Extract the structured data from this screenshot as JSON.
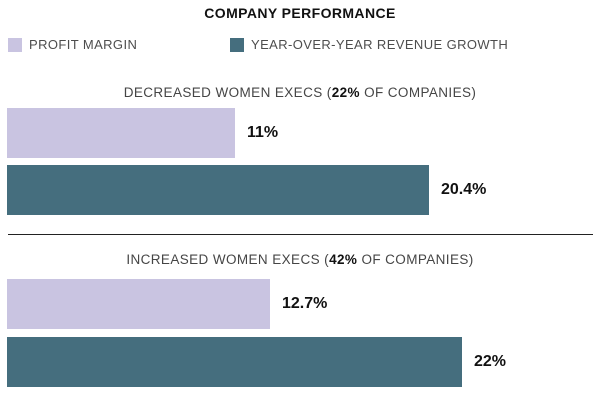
{
  "title": "COMPANY PERFORMANCE",
  "colors": {
    "profit_margin": "#c9c4e1",
    "revenue_growth": "#456e7e",
    "header_text": "#454545",
    "value_text": "#111111",
    "divider": "#222222"
  },
  "legend": [
    {
      "label": "PROFIT MARGIN",
      "series": "profit_margin",
      "color": "#c9c4e1"
    },
    {
      "label": "YEAR-OVER-YEAR REVENUE GROWTH",
      "series": "revenue_growth",
      "color": "#456e7e"
    }
  ],
  "chart_data": {
    "type": "bar",
    "orientation": "horizontal",
    "title": "COMPANY PERFORMANCE",
    "xlim": [
      0,
      29
    ],
    "grid": false,
    "axis_visible": false,
    "legend_position": "top-left",
    "series_names": [
      "PROFIT MARGIN",
      "YEAR-OVER-YEAR REVENUE GROWTH"
    ],
    "groups": [
      {
        "header_prefix": "DECREASED WOMEN EXECS (",
        "header_bold": "22%",
        "header_suffix": " OF COMPANIES)",
        "bars": [
          {
            "series": "profit_margin",
            "value": 11,
            "label": "11%"
          },
          {
            "series": "revenue_growth",
            "value": 20.4,
            "label": "20.4%"
          }
        ]
      },
      {
        "header_prefix": "INCREASED WOMEN EXECS (",
        "header_bold": "42%",
        "header_suffix": " OF COMPANIES)",
        "bars": [
          {
            "series": "profit_margin",
            "value": 12.7,
            "label": "12.7%"
          },
          {
            "series": "revenue_growth",
            "value": 22,
            "label": "22%"
          }
        ]
      }
    ]
  }
}
